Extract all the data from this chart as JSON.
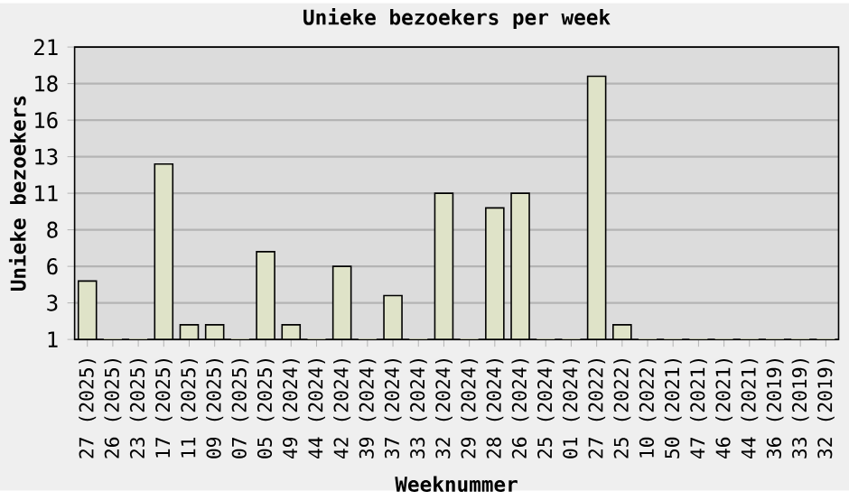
{
  "chart_data": {
    "type": "bar",
    "title": "Unieke bezoekers per week",
    "xlabel": "Weeknummer",
    "ylabel": "Unieke bezoekers",
    "categories": [
      "27 (2025)",
      "26 (2025)",
      "23 (2025)",
      "17 (2025)",
      "11 (2025)",
      "09 (2025)",
      "07 (2025)",
      "05 (2025)",
      "49 (2024)",
      "44 (2024)",
      "42 (2024)",
      "39 (2024)",
      "37 (2024)",
      "33 (2024)",
      "32 (2024)",
      "29 (2024)",
      "28 (2024)",
      "26 (2024)",
      "25 (2024)",
      "01 (2024)",
      "27 (2022)",
      "25 (2022)",
      "10 (2022)",
      "50 (2021)",
      "47 (2021)",
      "46 (2021)",
      "44 (2021)",
      "36 (2019)",
      "33 (2019)",
      "32 (2019)"
    ],
    "values": [
      5,
      1,
      1,
      13,
      2,
      2,
      1,
      7,
      2,
      1,
      6,
      1,
      4,
      1,
      11,
      1,
      10,
      11,
      1,
      1,
      19,
      2,
      1,
      1,
      1,
      1,
      1,
      1,
      1,
      1
    ],
    "color": "#dfe3c8",
    "ylim": [
      1,
      21
    ],
    "yticks": [
      1,
      {
        "value": 3.5,
        "label": "3"
      },
      6,
      {
        "value": 8.5,
        "label": "8"
      },
      11,
      {
        "value": 13.5,
        "label": "13"
      },
      16,
      {
        "value": 18.5,
        "label": "18"
      },
      21
    ],
    "grid": "y"
  }
}
